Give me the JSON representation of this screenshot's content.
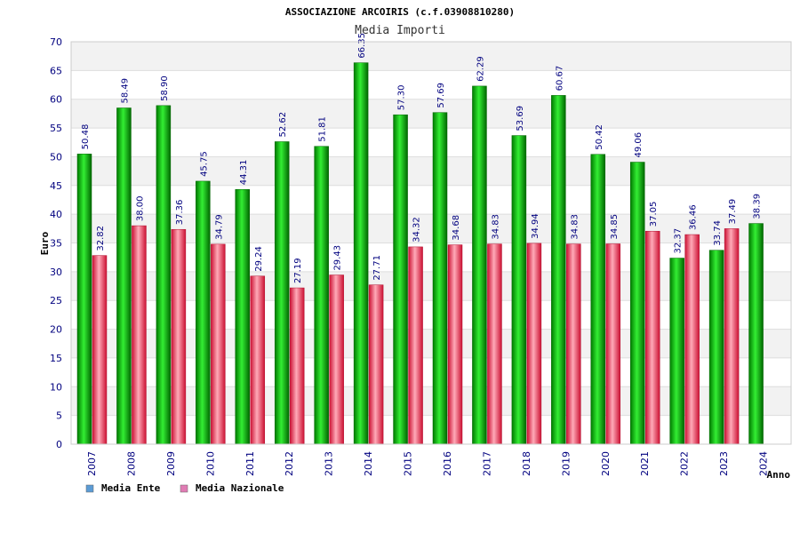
{
  "chart_data": {
    "type": "bar",
    "title": "ASSOCIAZIONE ARCOIRIS (c.f.03908810280)",
    "subtitle": "Media Importi",
    "xlabel": "Anno",
    "ylabel": "Euro",
    "ylim": [
      0,
      70
    ],
    "yticks": [
      0,
      5,
      10,
      15,
      20,
      25,
      30,
      35,
      40,
      45,
      50,
      55,
      60,
      65,
      70
    ],
    "grid": "horizontal bands",
    "legend_position": "bottom-left",
    "categories": [
      "2007",
      "2008",
      "2009",
      "2010",
      "2011",
      "2012",
      "2013",
      "2014",
      "2015",
      "2016",
      "2017",
      "2018",
      "2019",
      "2020",
      "2021",
      "2022",
      "2023",
      "2024"
    ],
    "series": [
      {
        "name": "Media Ente",
        "color": "#00aa00",
        "legend_color": "#5b9bd5",
        "values": [
          50.48,
          58.49,
          58.9,
          45.75,
          44.31,
          52.62,
          51.81,
          66.35,
          57.3,
          57.69,
          62.29,
          53.69,
          60.67,
          50.42,
          49.06,
          32.37,
          33.74,
          38.39
        ],
        "labels": [
          "50.48",
          "58.49",
          "58.90",
          "45.75",
          "44.31",
          "52.62",
          "51.81",
          "66.35",
          "57.30",
          "57.69",
          "62.29",
          "53.69",
          "60.67",
          "50.42",
          "49.06",
          "32.37",
          "33.74",
          "38.39"
        ]
      },
      {
        "name": "Media Nazionale",
        "color": "#e8384f",
        "legend_color": "#e07cb4",
        "values": [
          32.82,
          38.0,
          37.36,
          34.79,
          29.24,
          27.19,
          29.43,
          27.71,
          34.32,
          34.68,
          34.83,
          34.94,
          34.83,
          34.85,
          37.05,
          36.46,
          37.49,
          null
        ],
        "labels": [
          "32.82",
          "38.00",
          "37.36",
          "34.79",
          "29.24",
          "27.19",
          "29.43",
          "27.71",
          "34.32",
          "34.68",
          "34.83",
          "34.94",
          "34.83",
          "34.85",
          "37.05",
          "36.46",
          "37.49",
          ""
        ]
      }
    ]
  }
}
